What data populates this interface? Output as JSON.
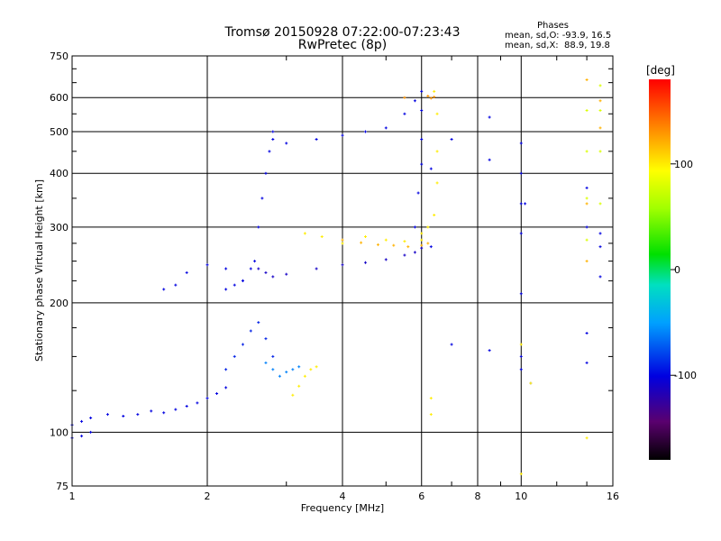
{
  "header": {
    "title": "Tromsø 20150928 07:22:00-07:23:43",
    "subtitle": "RwPretec (8p)"
  },
  "phase_stats": {
    "heading": "Phases",
    "line_o": "mean, sd,O: -93.9, 16.5",
    "line_x": "mean, sd,X:  88.9, 19.8"
  },
  "colorbar": {
    "unit_label": "[deg]",
    "ticks": [
      {
        "value": 100,
        "label": "100"
      },
      {
        "value": 0,
        "label": "0"
      },
      {
        "value": -100,
        "label": "-100"
      }
    ],
    "range": [
      -180,
      180
    ]
  },
  "chart_data": {
    "type": "scatter",
    "title": "Tromsø 20150928 07:22:00-07:23:43",
    "subtitle": "RwPretec (8p)",
    "xlabel": "Frequency [MHz]",
    "ylabel": "Stationary phase Virtual Height [km]",
    "x_scale": "log",
    "y_scale": "log",
    "xlim": [
      1,
      16
    ],
    "ylim": [
      75,
      750
    ],
    "x_ticks": [
      1,
      2,
      4,
      6,
      8,
      10,
      16
    ],
    "y_ticks": [
      75,
      100,
      200,
      300,
      400,
      500,
      600,
      750
    ],
    "grid": true,
    "color_variable": "phase [deg]",
    "series": [
      {
        "x": [
          1.0,
          1.05,
          1.1,
          1.2,
          1.3,
          1.4,
          1.5,
          1.6,
          1.7,
          1.8,
          1.9,
          2.0,
          2.1,
          2.2
        ],
        "y": [
          104,
          106,
          108,
          110,
          109,
          110,
          112,
          111,
          113,
          115,
          117,
          120,
          123,
          127
        ],
        "phase": -100
      },
      {
        "x": [
          1.0,
          1.05,
          1.1
        ],
        "y": [
          97,
          98,
          100
        ],
        "phase": -100
      },
      {
        "x": [
          2.2,
          2.3,
          2.4,
          2.5,
          2.6,
          2.7,
          2.8
        ],
        "y": [
          140,
          150,
          160,
          172,
          180,
          165,
          150
        ],
        "phase": -90
      },
      {
        "x": [
          2.7,
          2.8,
          2.9,
          3.0,
          3.1,
          3.2
        ],
        "y": [
          145,
          140,
          135,
          138,
          140,
          142
        ],
        "phase": -60
      },
      {
        "x": [
          3.1,
          3.2,
          3.3,
          3.4,
          3.5
        ],
        "y": [
          122,
          128,
          135,
          140,
          142
        ],
        "phase": 100
      },
      {
        "x": [
          1.6,
          1.7,
          1.8,
          2.0,
          2.2,
          2.4
        ],
        "y": [
          215,
          220,
          235,
          245,
          240,
          225
        ],
        "phase": -100
      },
      {
        "x": [
          2.2,
          2.3,
          2.4,
          2.5
        ],
        "y": [
          215,
          220,
          225,
          240
        ],
        "phase": -100
      },
      {
        "x": [
          2.55,
          2.6,
          2.65,
          2.7,
          2.75,
          2.8
        ],
        "y": [
          250,
          300,
          350,
          400,
          450,
          500
        ],
        "phase": -100
      },
      {
        "x": [
          2.6,
          2.7,
          2.8,
          3.0,
          3.5,
          4.0,
          4.5,
          5.0,
          5.5,
          5.8,
          6.0
        ],
        "y": [
          240,
          235,
          230,
          233,
          240,
          245,
          248,
          252,
          258,
          262,
          268
        ],
        "phase": -110
      },
      {
        "x": [
          2.8,
          3.0,
          3.5,
          4.0,
          4.5,
          5.0,
          5.5,
          5.8,
          6.0
        ],
        "y": [
          480,
          470,
          480,
          490,
          500,
          510,
          550,
          590,
          620
        ],
        "phase": -100
      },
      {
        "x": [
          5.8,
          5.9,
          6.0,
          6.0,
          6.0
        ],
        "y": [
          300,
          360,
          420,
          480,
          560
        ],
        "phase": -100
      },
      {
        "x": [
          3.3,
          3.6,
          4.0,
          4.5,
          5.0,
          5.5,
          6.0
        ],
        "y": [
          290,
          285,
          275,
          285,
          280,
          278,
          280
        ],
        "phase": 100
      },
      {
        "x": [
          6.0,
          6.2,
          6.4,
          6.5,
          6.5,
          6.5,
          6.4
        ],
        "y": [
          290,
          300,
          320,
          380,
          450,
          550,
          620
        ],
        "phase": 100
      },
      {
        "x": [
          4.0,
          4.4,
          4.8,
          5.2,
          5.6,
          6.0,
          6.2
        ],
        "y": [
          280,
          276,
          273,
          272,
          270,
          272,
          275
        ],
        "phase": 120
      },
      {
        "x": [
          6.3,
          6.3,
          7.0,
          8.5,
          8.5,
          10.0,
          10.0,
          10.0,
          10.0,
          10.0,
          10.2
        ],
        "y": [
          410,
          270,
          480,
          540,
          430,
          470,
          400,
          340,
          290,
          210,
          340
        ],
        "phase": -100
      },
      {
        "x": [
          14,
          14,
          14,
          14,
          15,
          15,
          15,
          15
        ],
        "y": [
          560,
          450,
          350,
          280,
          640,
          560,
          450,
          340
        ],
        "phase": 80
      },
      {
        "x": [
          14,
          14,
          14,
          15,
          15
        ],
        "y": [
          660,
          340,
          250,
          590,
          510
        ],
        "phase": 120
      },
      {
        "x": [
          14,
          14,
          15,
          15,
          15
        ],
        "y": [
          300,
          370,
          290,
          270,
          230
        ],
        "phase": -100
      },
      {
        "x": [
          7.0,
          8.5,
          10.0,
          10.0,
          10.5,
          14,
          14
        ],
        "y": [
          160,
          155,
          150,
          140,
          130,
          170,
          145
        ],
        "phase": -100
      },
      {
        "x": [
          10.0,
          14,
          6.3,
          6.3,
          10.0,
          10.5
        ],
        "y": [
          80,
          97,
          110,
          120,
          160,
          130
        ],
        "phase": 100
      },
      {
        "x": [
          5.5,
          6.2,
          6.3,
          6.4
        ],
        "y": [
          600,
          605,
          598,
          602
        ],
        "phase": 130
      }
    ]
  }
}
